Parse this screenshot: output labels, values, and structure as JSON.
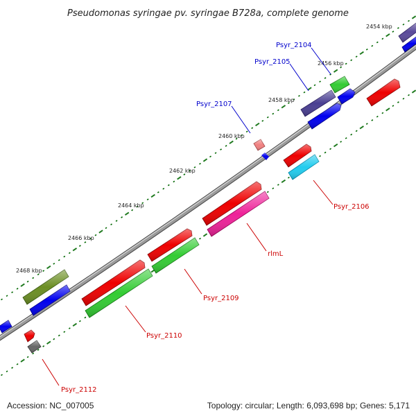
{
  "title": "Pseudomonas syringae pv. syringae B728a, complete genome",
  "footer": {
    "accession": "Accession: NC_007005",
    "summary": "Topology: circular; Length: 6,093,698 bp; Genes: 5,171"
  },
  "scale_labels": [
    "2454 kbp",
    "2456 kbp",
    "2458 kbp",
    "2460 kbp",
    "2462 kbp",
    "2464 kbp",
    "2466 kbp",
    "2468 kbp"
  ],
  "labels": {
    "psyr_2104": "Psyr_2104",
    "psyr_2105": "Psyr_2105",
    "psyr_2107": "Psyr_2107",
    "psyr_2106": "Psyr_2106",
    "rlmL": "rlmL",
    "psyr_2109": "Psyr_2109",
    "psyr_2110": "Psyr_2110",
    "psyr_2112": "Psyr_2112"
  },
  "colors": {
    "backbone": "#808080",
    "forward_cds": "#ff0000",
    "reverse_cds": "#0000ff",
    "label_forward": "#cc0000",
    "label_reverse": "#0000cc",
    "tick_minor": "#006600",
    "tick_major": "#1f7a1f"
  }
}
